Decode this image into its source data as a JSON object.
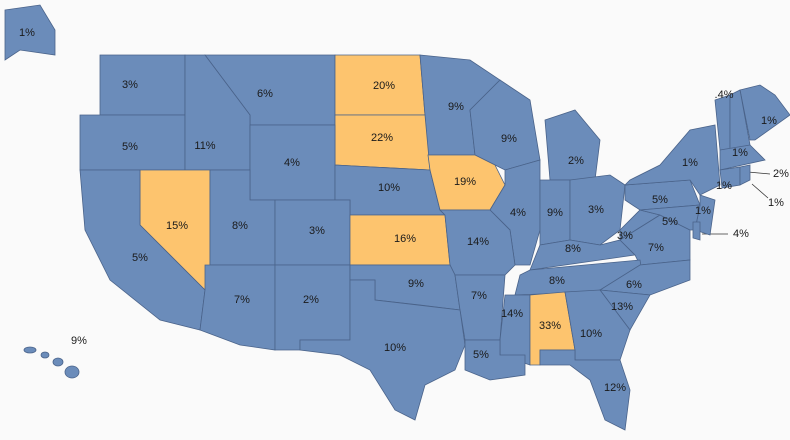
{
  "chart_data": {
    "type": "map",
    "values": [
      1,
      3,
      6,
      20,
      9,
      9,
      2,
      5,
      11,
      22,
      4,
      10,
      19,
      15,
      8,
      3,
      16,
      5,
      4,
      9,
      3,
      14,
      8,
      3,
      7,
      5,
      1,
      7,
      2,
      9,
      7,
      8,
      6,
      13,
      14,
      33,
      10,
      10,
      5,
      12,
      9,
      0.4,
      1,
      1,
      2,
      1,
      1,
      1,
      5,
      4
    ],
    "value_labels": [
      "1%",
      "3%",
      "6%",
      "20%",
      "9%",
      "9%",
      "2%",
      "5%",
      "11%",
      "22%",
      "4%",
      "10%",
      "19%",
      "15%",
      "8%",
      "3%",
      "16%",
      "5%",
      "4%",
      "9%",
      "3%",
      "14%",
      "8%",
      "3%",
      "7%",
      "5%",
      "1%",
      "7%",
      "2%",
      "9%",
      "7%",
      "8%",
      "6%",
      "13%",
      "14%",
      "33%",
      "10%",
      "10%",
      "5%",
      "12%",
      "9%",
      ".4%",
      "1%",
      "1%",
      "2%",
      "1%",
      "1%",
      "1%",
      "5%",
      "4%"
    ],
    "colors": [
      "#6b8cba",
      "#6b8cba",
      "#6b8cba",
      "#fdc46e",
      "#6b8cba",
      "#6b8cba",
      "#6b8cba",
      "#6b8cba",
      "#6b8cba",
      "#fdc46e",
      "#6b8cba",
      "#6b8cba",
      "#fdc46e",
      "#fdc46e",
      "#6b8cba",
      "#6b8cba",
      "#fdc46e",
      "#6b8cba",
      "#6b8cba",
      "#6b8cba",
      "#6b8cba",
      "#6b8cba",
      "#6b8cba",
      "#6b8cba",
      "#6b8cba",
      "#6b8cba",
      "#6b8cba",
      "#6b8cba",
      "#6b8cba",
      "#6b8cba",
      "#6b8cba",
      "#6b8cba",
      "#6b8cba",
      "#6b8cba",
      "#6b8cba",
      "#fdc46e",
      "#6b8cba",
      "#6b8cba",
      "#6b8cba",
      "#6b8cba",
      "#6b8cba",
      "#6b8cba",
      "#6b8cba",
      "#6b8cba",
      "#6b8cba",
      "#6b8cba",
      "#6b8cba",
      "#6b8cba",
      "#6b8cba",
      "#6b8cba"
    ]
  }
}
